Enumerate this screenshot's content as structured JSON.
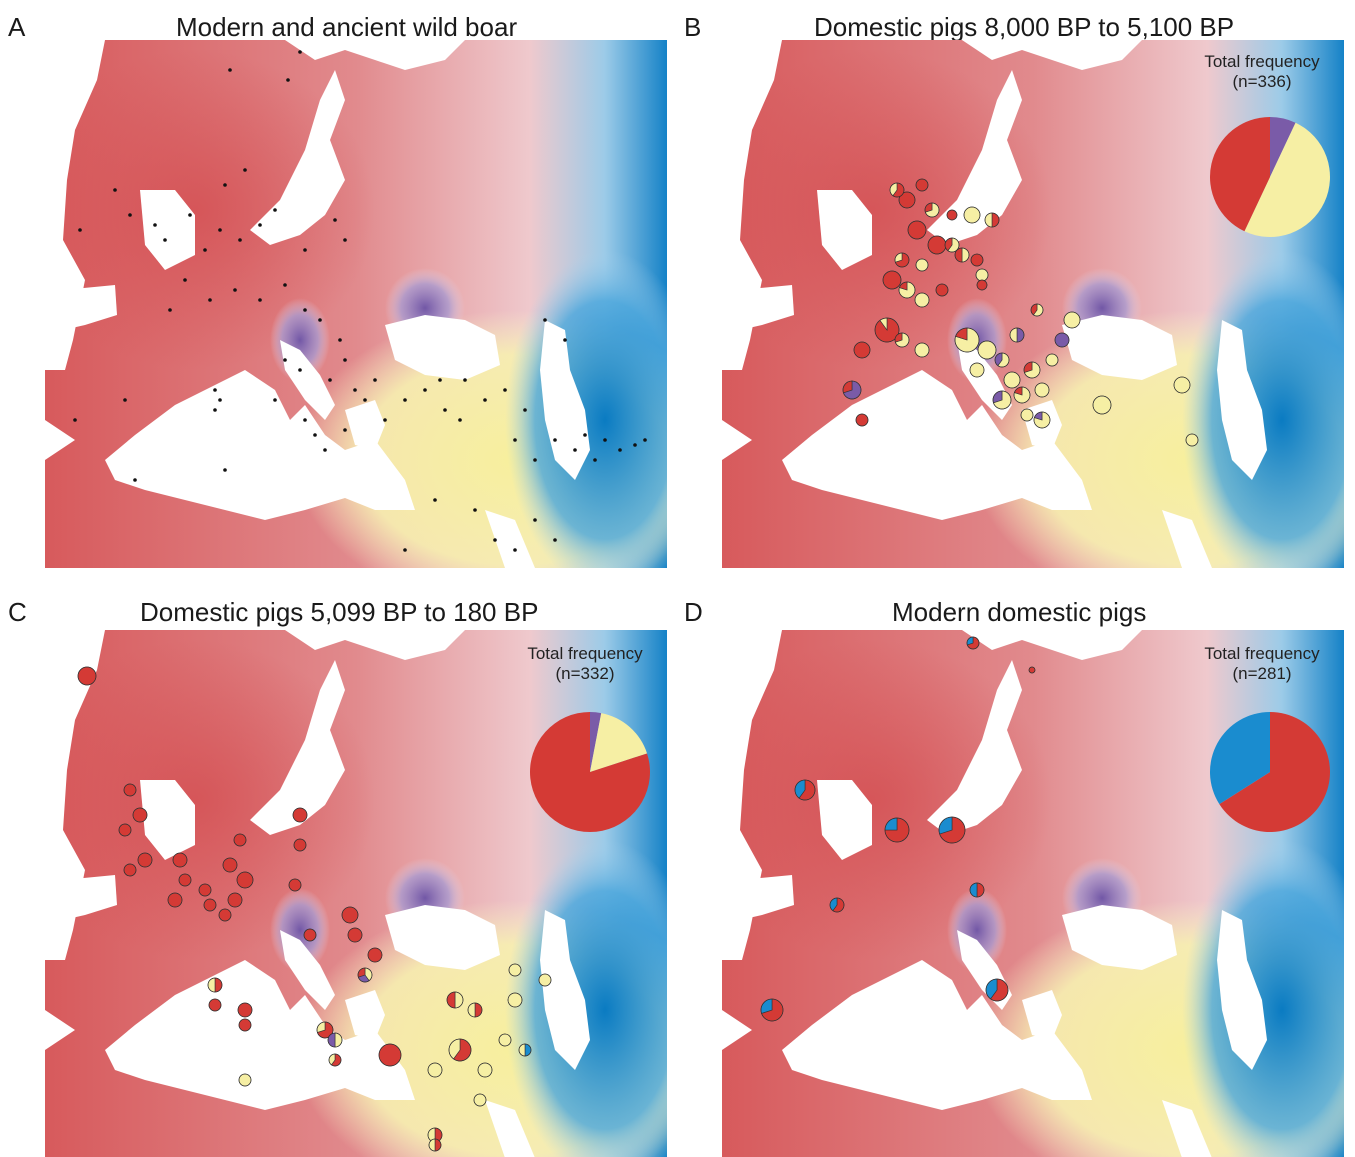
{
  "colors": {
    "red": "#d43a35",
    "yellow": "#f6efa4",
    "purple": "#7a5ba8",
    "blue": "#1a8ccf",
    "land_red": "#dc6b6a",
    "sea": "#ffffff"
  },
  "panels": [
    {
      "letter": "A",
      "title": "Modern and ancient wild boar",
      "inset": null,
      "samples_style": "dots"
    },
    {
      "letter": "B",
      "title": "Domestic pigs 8,000 BP to 5,100 BP",
      "inset": {
        "label": "Total frequency",
        "n_label": "(n=336)",
        "slices": [
          {
            "color": "purple",
            "fraction": 0.07
          },
          {
            "color": "yellow",
            "fraction": 0.5
          },
          {
            "color": "red",
            "fraction": 0.43
          }
        ]
      },
      "samples_style": "pies"
    },
    {
      "letter": "C",
      "title": "Domestic pigs 5,099 BP to 180 BP",
      "inset": {
        "label": "Total frequency",
        "n_label": "(n=332)",
        "slices": [
          {
            "color": "purple",
            "fraction": 0.03
          },
          {
            "color": "yellow",
            "fraction": 0.17
          },
          {
            "color": "red",
            "fraction": 0.8
          }
        ]
      },
      "samples_style": "pies"
    },
    {
      "letter": "D",
      "title": "Modern domestic pigs",
      "inset": {
        "label": "Total frequency",
        "n_label": "(n=281)",
        "slices": [
          {
            "color": "red",
            "fraction": 0.66
          },
          {
            "color": "blue",
            "fraction": 0.34
          }
        ]
      },
      "samples_style": "pies"
    }
  ]
}
